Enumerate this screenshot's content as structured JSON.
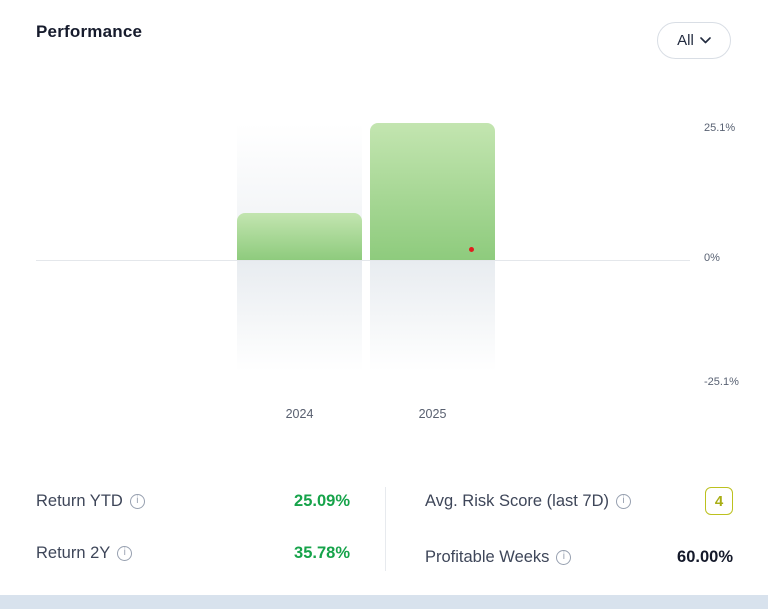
{
  "header": {
    "title": "Performance",
    "filter": {
      "label": "All"
    }
  },
  "chart_data": {
    "type": "bar",
    "categories": [
      "2024",
      "2025"
    ],
    "values": [
      8.6,
      25.1
    ],
    "unit": "%",
    "y_ticks": [
      "25.1%",
      "0%",
      "-25.1%"
    ],
    "ylim": [
      -25.1,
      25.1
    ],
    "grid": false,
    "legend": "none",
    "bar_gradient": [
      "#c3e5b0",
      "#8ecb7d"
    ],
    "marker": {
      "color": "#e11d1d",
      "near_category": "2025",
      "value": 1.0
    }
  },
  "stats": {
    "left": [
      {
        "label": "Return YTD",
        "value": "25.09%"
      },
      {
        "label": "Return 2Y",
        "value": "35.78%"
      }
    ],
    "right": [
      {
        "label": "Avg. Risk Score (last 7D)",
        "value": "4"
      },
      {
        "label": "Profitable Weeks",
        "value": "60.00%"
      }
    ]
  },
  "icons": {
    "info": "i"
  },
  "colors": {
    "positive_value": "#16a34a",
    "risk_score": "#a9ae15",
    "bar_top": "#c3e5b0",
    "bar_bottom": "#8ecb7d",
    "bottom_strip": "#d8e2ed"
  }
}
